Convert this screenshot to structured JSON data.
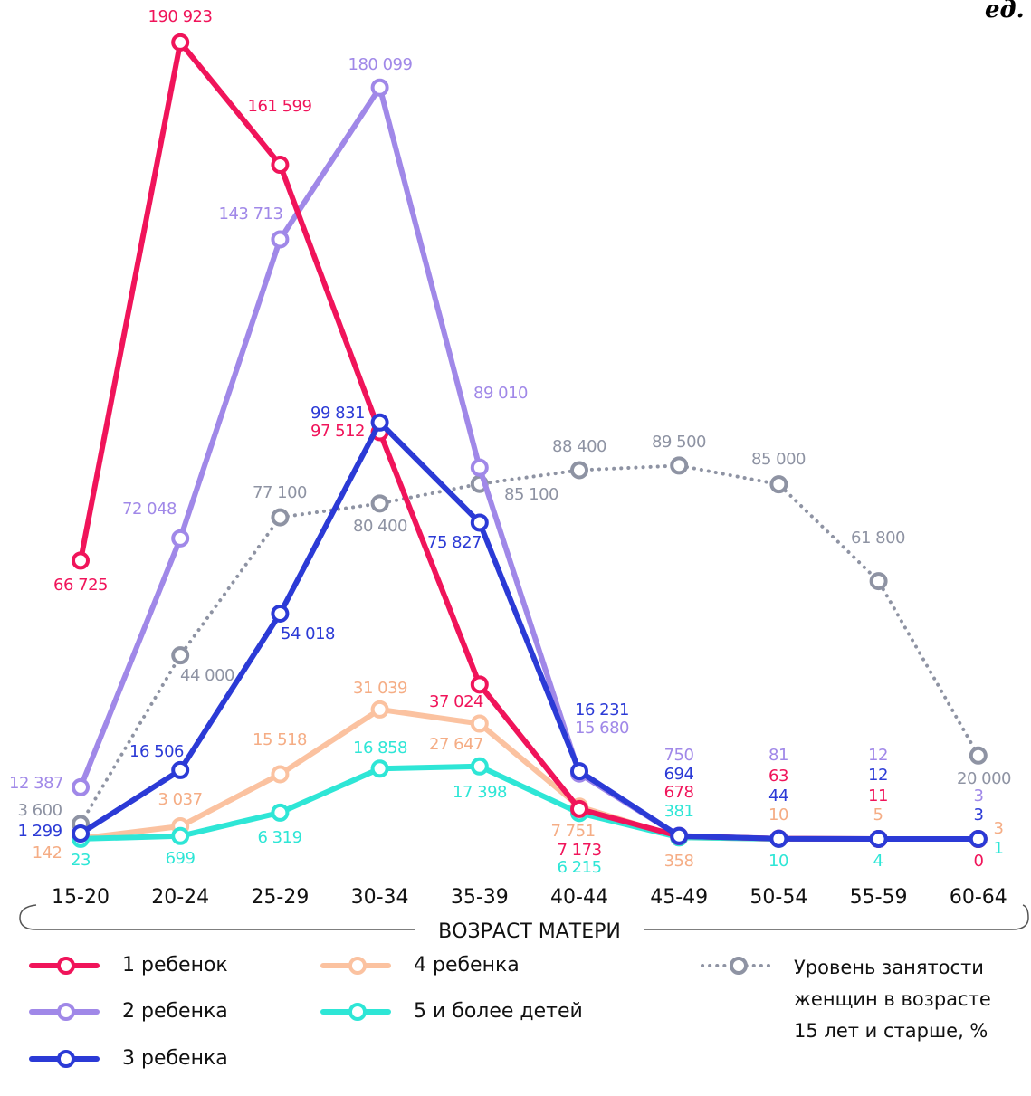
{
  "chart_data": {
    "type": "line",
    "unit": "ед.",
    "x_label": "ВОЗРАСТ МАТЕРИ",
    "categories": [
      "15-20",
      "20-24",
      "25-29",
      "30-34",
      "35-39",
      "40-44",
      "45-49",
      "50-54",
      "55-59",
      "60-64"
    ],
    "ylim": [
      0,
      200000
    ],
    "series": [
      {
        "name": "Уровень занятости\nженщин в возрасте\n15 лет и старше, %",
        "color": "#8e93a3",
        "style": "dotted",
        "values": [
          3600,
          44000,
          77100,
          80400,
          85100,
          88400,
          89500,
          85000,
          61800,
          20000
        ],
        "value_labels": [
          "3 600",
          "44 000",
          "77 100",
          "80 400",
          "85 100",
          "88 400",
          "89 500",
          "85 000",
          "61 800",
          "20 000"
        ]
      },
      {
        "name": "4 ребенка",
        "color": "#fbc2a0",
        "style": "solid",
        "values": [
          142,
          3037,
          15518,
          31039,
          27647,
          7751,
          358,
          10,
          5,
          3
        ],
        "value_labels": [
          "142",
          "3 037",
          "15 518",
          "31 039",
          "27 647",
          "7 751",
          "358",
          "10",
          "5",
          "3"
        ]
      },
      {
        "name": "5 и более детей",
        "color": "#2ee6d6",
        "style": "solid",
        "values": [
          23,
          699,
          6319,
          16858,
          17398,
          6215,
          381,
          10,
          4,
          1
        ],
        "value_labels": [
          "23",
          "699",
          "6 319",
          "16 858",
          "17 398",
          "6 215",
          "381",
          "10",
          "4",
          "1"
        ]
      },
      {
        "name": "2 ребенка",
        "color": "#a088e8",
        "style": "solid",
        "values": [
          12387,
          72048,
          143713,
          180099,
          89010,
          15680,
          750,
          81,
          12,
          3
        ],
        "value_labels": [
          "12 387",
          "72 048",
          "143 713",
          "180 099",
          "89 010",
          "15 680",
          "750",
          "81",
          "12",
          "3"
        ]
      },
      {
        "name": "1 ребенок",
        "color": "#f0145a",
        "style": "solid",
        "values": [
          66725,
          190923,
          161599,
          97512,
          37024,
          7173,
          678,
          63,
          11,
          0
        ],
        "value_labels": [
          "66 725",
          "190 923",
          "161 599",
          "97 512",
          "37 024",
          "7 173",
          "678",
          "63",
          "11",
          "0"
        ]
      },
      {
        "name": "3 ребенка",
        "color": "#2b3ad6",
        "style": "solid",
        "values": [
          1299,
          16506,
          54018,
          99831,
          75827,
          16231,
          694,
          44,
          12,
          3
        ],
        "value_labels": [
          "1 299",
          "16 506",
          "54 018",
          "99 831",
          "75 827",
          "16 231",
          "694",
          "44",
          "12",
          "3"
        ]
      }
    ]
  }
}
